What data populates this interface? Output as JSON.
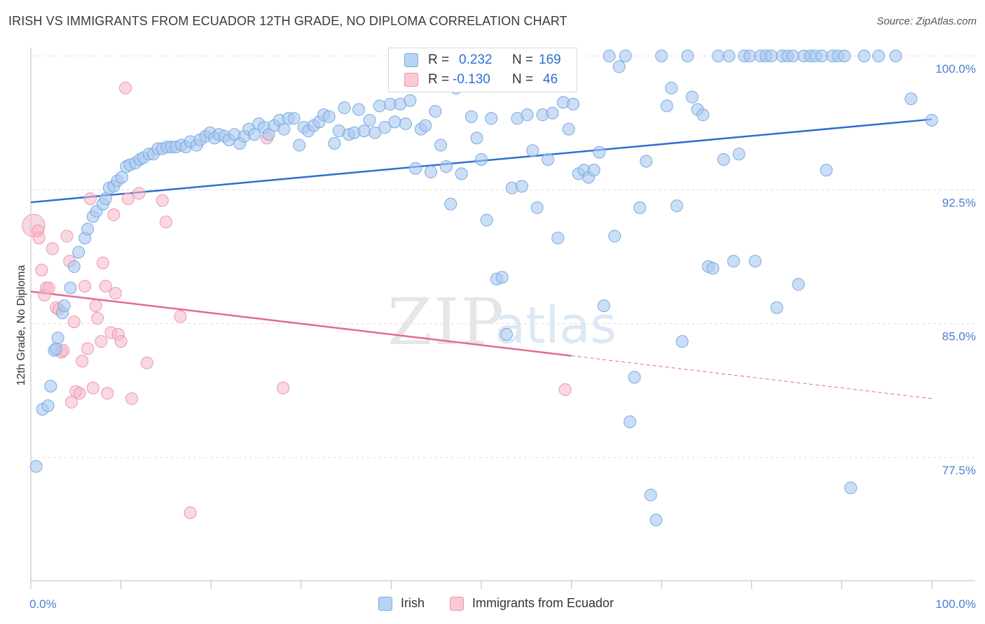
{
  "title": "IRISH VS IMMIGRANTS FROM ECUADOR 12TH GRADE, NO DIPLOMA CORRELATION CHART",
  "source": "Source: ZipAtlas.com",
  "watermark": {
    "zip": "ZIP",
    "atlas": "atlas"
  },
  "legend": {
    "irish": {
      "r_label": "R =",
      "r_value": "0.232",
      "n_label": "N =",
      "n_value": "169"
    },
    "ecuador": {
      "r_label": "R =",
      "r_value": "-0.130",
      "n_label": "N =",
      "n_value": "46"
    }
  },
  "bottom_legend": {
    "irish": "Irish",
    "ecuador": "Immigrants from Ecuador"
  },
  "colors": {
    "irish_fill": "#a8c8f0",
    "irish_stroke": "#7aaae0",
    "irish_line": "#2f6fd0",
    "ecuador_fill": "#f5b8c8",
    "ecuador_stroke": "#ee94ae",
    "ecuador_line": "#e06a92",
    "grid": "#dddddd",
    "tick_text": "#4a7fd0"
  },
  "chart_data": {
    "type": "scatter",
    "title": "IRISH VS IMMIGRANTS FROM ECUADOR 12TH GRADE, NO DIPLOMA CORRELATION CHART",
    "xlabel": "",
    "ylabel": "12th Grade, No Diploma",
    "xlim": [
      0,
      100
    ],
    "ylim": [
      70,
      101
    ],
    "x_tick_labels": [
      "0.0%",
      "100.0%"
    ],
    "y_ticks": [
      77.5,
      85.0,
      92.5,
      100.0
    ],
    "y_tick_labels": [
      "77.5%",
      "85.0%",
      "92.5%",
      "100.0%"
    ],
    "grid": true,
    "series": [
      {
        "name": "Irish",
        "points": [
          [
            0.6,
            77.0
          ],
          [
            1.3,
            80.2
          ],
          [
            1.9,
            80.4
          ],
          [
            2.2,
            81.5
          ],
          [
            2.6,
            83.5
          ],
          [
            2.8,
            83.6
          ],
          [
            3.0,
            84.2
          ],
          [
            3.5,
            85.6
          ],
          [
            3.7,
            86.0
          ],
          [
            4.4,
            87.0
          ],
          [
            4.8,
            88.2
          ],
          [
            5.3,
            89.0
          ],
          [
            6.0,
            89.8
          ],
          [
            6.3,
            90.3
          ],
          [
            6.9,
            91.0
          ],
          [
            7.3,
            91.3
          ],
          [
            8.0,
            91.7
          ],
          [
            8.3,
            92.0
          ],
          [
            8.7,
            92.6
          ],
          [
            9.2,
            92.7
          ],
          [
            9.6,
            93.0
          ],
          [
            10.1,
            93.2
          ],
          [
            10.6,
            93.8
          ],
          [
            11.0,
            93.9
          ],
          [
            11.6,
            94.0
          ],
          [
            12.1,
            94.2
          ],
          [
            12.5,
            94.3
          ],
          [
            13.1,
            94.5
          ],
          [
            13.6,
            94.5
          ],
          [
            14.1,
            94.8
          ],
          [
            14.6,
            94.8
          ],
          [
            15.1,
            94.9
          ],
          [
            15.6,
            94.9
          ],
          [
            16.1,
            94.9
          ],
          [
            16.7,
            95.0
          ],
          [
            17.2,
            94.9
          ],
          [
            17.7,
            95.2
          ],
          [
            18.4,
            95.0
          ],
          [
            18.8,
            95.3
          ],
          [
            19.4,
            95.5
          ],
          [
            19.9,
            95.7
          ],
          [
            20.4,
            95.4
          ],
          [
            20.9,
            95.6
          ],
          [
            21.5,
            95.5
          ],
          [
            22.0,
            95.3
          ],
          [
            22.6,
            95.6
          ],
          [
            23.2,
            95.1
          ],
          [
            23.7,
            95.5
          ],
          [
            24.2,
            95.9
          ],
          [
            24.8,
            95.6
          ],
          [
            25.3,
            96.2
          ],
          [
            25.9,
            96.0
          ],
          [
            26.4,
            95.6
          ],
          [
            27.0,
            96.1
          ],
          [
            27.6,
            96.4
          ],
          [
            28.1,
            95.9
          ],
          [
            28.6,
            96.5
          ],
          [
            29.2,
            96.5
          ],
          [
            29.8,
            95.0
          ],
          [
            30.3,
            96.0
          ],
          [
            30.8,
            95.8
          ],
          [
            31.4,
            96.1
          ],
          [
            32.0,
            96.3
          ],
          [
            32.5,
            96.7
          ],
          [
            33.1,
            96.6
          ],
          [
            33.7,
            95.1
          ],
          [
            34.2,
            95.8
          ],
          [
            34.8,
            97.1
          ],
          [
            35.3,
            95.6
          ],
          [
            35.9,
            95.7
          ],
          [
            36.4,
            97.0
          ],
          [
            37.0,
            95.8
          ],
          [
            37.6,
            96.4
          ],
          [
            38.2,
            95.7
          ],
          [
            38.7,
            97.2
          ],
          [
            39.3,
            96.0
          ],
          [
            39.9,
            97.3
          ],
          [
            40.4,
            96.3
          ],
          [
            41.0,
            97.3
          ],
          [
            41.6,
            96.2
          ],
          [
            42.1,
            97.5
          ],
          [
            42.7,
            93.7
          ],
          [
            43.3,
            95.9
          ],
          [
            43.8,
            96.1
          ],
          [
            44.4,
            93.5
          ],
          [
            44.9,
            96.9
          ],
          [
            45.5,
            95.0
          ],
          [
            46.1,
            93.8
          ],
          [
            46.6,
            91.7
          ],
          [
            47.2,
            98.2
          ],
          [
            47.8,
            93.4
          ],
          [
            48.3,
            100.0
          ],
          [
            48.9,
            96.6
          ],
          [
            49.5,
            95.4
          ],
          [
            50.0,
            94.2
          ],
          [
            50.6,
            90.8
          ],
          [
            51.1,
            96.5
          ],
          [
            51.7,
            87.5
          ],
          [
            52.3,
            87.6
          ],
          [
            52.8,
            84.4
          ],
          [
            53.4,
            92.6
          ],
          [
            54.0,
            96.5
          ],
          [
            54.5,
            92.7
          ],
          [
            55.1,
            96.7
          ],
          [
            55.7,
            94.7
          ],
          [
            56.2,
            91.5
          ],
          [
            56.8,
            96.7
          ],
          [
            57.4,
            94.2
          ],
          [
            57.9,
            96.8
          ],
          [
            58.5,
            89.8
          ],
          [
            59.1,
            97.4
          ],
          [
            59.7,
            95.9
          ],
          [
            60.2,
            97.3
          ],
          [
            60.8,
            93.4
          ],
          [
            61.4,
            93.6
          ],
          [
            61.9,
            93.2
          ],
          [
            62.5,
            93.6
          ],
          [
            63.1,
            94.6
          ],
          [
            63.6,
            86.0
          ],
          [
            64.2,
            100.0
          ],
          [
            64.8,
            89.9
          ],
          [
            65.3,
            99.4
          ],
          [
            66.0,
            100.0
          ],
          [
            66.5,
            79.5
          ],
          [
            67.0,
            82.0
          ],
          [
            67.6,
            91.5
          ],
          [
            68.3,
            94.1
          ],
          [
            68.8,
            75.4
          ],
          [
            69.4,
            74.0
          ],
          [
            70.0,
            100.0
          ],
          [
            70.6,
            97.2
          ],
          [
            71.1,
            98.2
          ],
          [
            71.7,
            91.6
          ],
          [
            72.3,
            84.0
          ],
          [
            72.9,
            100.0
          ],
          [
            73.4,
            97.7
          ],
          [
            74.0,
            97.0
          ],
          [
            74.6,
            96.7
          ],
          [
            75.2,
            88.2
          ],
          [
            75.7,
            88.1
          ],
          [
            76.3,
            100.0
          ],
          [
            76.9,
            94.2
          ],
          [
            77.5,
            100.0
          ],
          [
            78.0,
            88.5
          ],
          [
            78.6,
            94.5
          ],
          [
            79.2,
            100.0
          ],
          [
            79.8,
            100.0
          ],
          [
            80.4,
            88.5
          ],
          [
            81.0,
            100.0
          ],
          [
            81.6,
            100.0
          ],
          [
            82.2,
            100.0
          ],
          [
            82.8,
            85.9
          ],
          [
            83.4,
            100.0
          ],
          [
            84.0,
            100.0
          ],
          [
            84.6,
            100.0
          ],
          [
            85.2,
            87.2
          ],
          [
            85.8,
            100.0
          ],
          [
            86.5,
            100.0
          ],
          [
            87.1,
            100.0
          ],
          [
            87.8,
            100.0
          ],
          [
            88.3,
            93.6
          ],
          [
            89.0,
            100.0
          ],
          [
            89.6,
            100.0
          ],
          [
            90.3,
            100.0
          ],
          [
            91.0,
            75.8
          ],
          [
            92.5,
            100.0
          ],
          [
            94.1,
            100.0
          ],
          [
            96.0,
            100.0
          ],
          [
            97.7,
            97.6
          ],
          [
            100.0,
            96.4
          ]
        ],
        "trendline": {
          "x": [
            0,
            100
          ],
          "y": [
            91.8,
            96.45
          ]
        }
      },
      {
        "name": "Immigrants from Ecuador",
        "points": [
          [
            0.3,
            90.5
          ],
          [
            0.8,
            90.2
          ],
          [
            0.9,
            89.8
          ],
          [
            1.2,
            88.0
          ],
          [
            1.5,
            86.6
          ],
          [
            1.7,
            87.0
          ],
          [
            2.0,
            87.0
          ],
          [
            2.4,
            89.2
          ],
          [
            2.8,
            85.9
          ],
          [
            3.1,
            85.8
          ],
          [
            3.4,
            83.4
          ],
          [
            3.6,
            83.5
          ],
          [
            4.0,
            89.9
          ],
          [
            4.3,
            88.5
          ],
          [
            4.5,
            80.6
          ],
          [
            4.8,
            85.1
          ],
          [
            5.0,
            81.2
          ],
          [
            5.4,
            81.1
          ],
          [
            5.7,
            82.9
          ],
          [
            6.0,
            87.1
          ],
          [
            6.3,
            83.6
          ],
          [
            6.6,
            92.0
          ],
          [
            6.9,
            81.4
          ],
          [
            7.2,
            86.0
          ],
          [
            7.4,
            85.3
          ],
          [
            7.8,
            84.0
          ],
          [
            8.0,
            88.4
          ],
          [
            8.3,
            87.1
          ],
          [
            8.5,
            81.1
          ],
          [
            8.9,
            84.5
          ],
          [
            9.2,
            91.1
          ],
          [
            9.4,
            86.7
          ],
          [
            9.7,
            84.4
          ],
          [
            10.0,
            84.0
          ],
          [
            10.5,
            98.2
          ],
          [
            10.8,
            92.0
          ],
          [
            11.2,
            80.8
          ],
          [
            12.0,
            92.3
          ],
          [
            12.9,
            82.8
          ],
          [
            14.6,
            91.9
          ],
          [
            15.0,
            90.7
          ],
          [
            16.6,
            85.4
          ],
          [
            17.7,
            74.4
          ],
          [
            26.2,
            95.4
          ],
          [
            28.0,
            81.4
          ],
          [
            59.3,
            81.3
          ]
        ],
        "trendline": {
          "x": [
            0,
            60
          ],
          "y": [
            86.8,
            83.2
          ]
        },
        "trendline_dashed": {
          "x": [
            60,
            100
          ],
          "y": [
            83.2,
            80.8
          ]
        }
      }
    ]
  }
}
